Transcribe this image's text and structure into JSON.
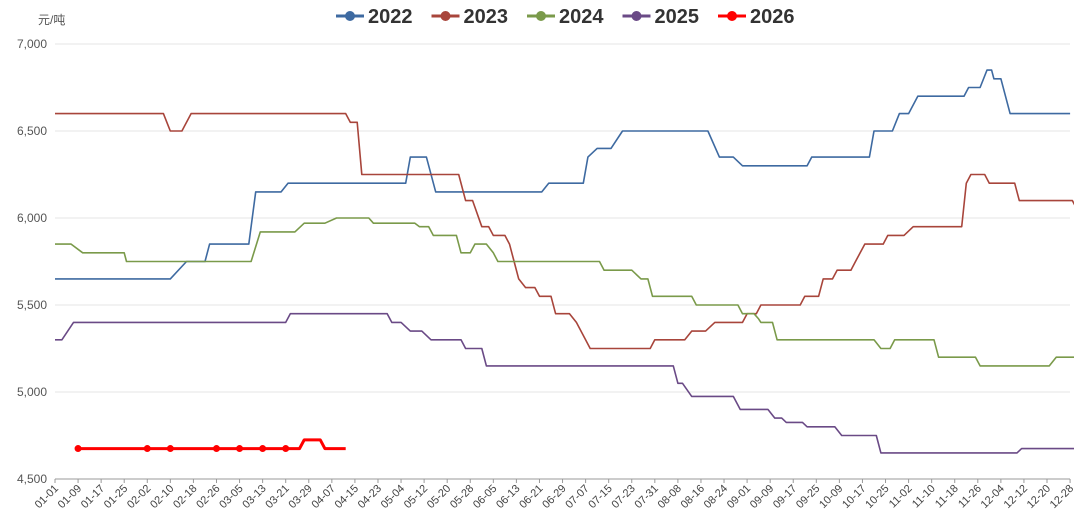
{
  "chart_data": {
    "type": "line",
    "unit_label": "元/吨",
    "ylim": [
      4500,
      7000
    ],
    "yticks": [
      4500,
      5000,
      5500,
      6000,
      6500,
      7000
    ],
    "ytick_labels": [
      "4,500",
      "5,000",
      "5,500",
      "6,000",
      "6,500",
      "7,000"
    ],
    "x_categories": [
      "01-01",
      "01-09",
      "01-17",
      "01-25",
      "02-02",
      "02-10",
      "02-18",
      "02-26",
      "03-05",
      "03-13",
      "03-21",
      "03-29",
      "04-07",
      "04-15",
      "04-23",
      "05-04",
      "05-12",
      "05-20",
      "05-28",
      "06-05",
      "06-13",
      "06-21",
      "06-29",
      "07-07",
      "07-15",
      "07-23",
      "07-31",
      "08-08",
      "08-16",
      "08-24",
      "09-01",
      "09-09",
      "09-17",
      "09-25",
      "10-09",
      "10-17",
      "10-25",
      "11-02",
      "11-10",
      "11-18",
      "11-26",
      "12-04",
      "12-12",
      "12-20",
      "12-28"
    ],
    "grid": "horizontal",
    "legend_position": "top",
    "series": [
      {
        "name": "2022",
        "color": "#3e6aa1",
        "marker": false,
        "points": [
          [
            0,
            5650
          ],
          [
            5,
            5650
          ],
          [
            5.7,
            5750
          ],
          [
            6.5,
            5750
          ],
          [
            6.7,
            5850
          ],
          [
            8.4,
            5850
          ],
          [
            8.7,
            6150
          ],
          [
            9.8,
            6150
          ],
          [
            10.1,
            6200
          ],
          [
            15.2,
            6200
          ],
          [
            15.4,
            6350
          ],
          [
            16.1,
            6350
          ],
          [
            16.5,
            6150
          ],
          [
            21.1,
            6150
          ],
          [
            21.4,
            6200
          ],
          [
            22.9,
            6200
          ],
          [
            23.1,
            6350
          ],
          [
            23.5,
            6400
          ],
          [
            24.1,
            6400
          ],
          [
            24.6,
            6500
          ],
          [
            28.3,
            6500
          ],
          [
            28.8,
            6350
          ],
          [
            29.4,
            6350
          ],
          [
            29.8,
            6300
          ],
          [
            32.6,
            6300
          ],
          [
            32.8,
            6350
          ],
          [
            35.3,
            6350
          ],
          [
            35.5,
            6500
          ],
          [
            36.3,
            6500
          ],
          [
            36.6,
            6600
          ],
          [
            37,
            6600
          ],
          [
            37.4,
            6700
          ],
          [
            39.4,
            6700
          ],
          [
            39.6,
            6750
          ],
          [
            40.1,
            6750
          ],
          [
            40.4,
            6850
          ],
          [
            40.6,
            6850
          ],
          [
            40.7,
            6800
          ],
          [
            41,
            6800
          ],
          [
            41.4,
            6600
          ],
          [
            44,
            6600
          ]
        ]
      },
      {
        "name": "2023",
        "color": "#a8453b",
        "marker": false,
        "points": [
          [
            0,
            6600
          ],
          [
            4.7,
            6600
          ],
          [
            5,
            6500
          ],
          [
            5.5,
            6500
          ],
          [
            5.9,
            6600
          ],
          [
            12.6,
            6600
          ],
          [
            12.8,
            6550
          ],
          [
            13.1,
            6550
          ],
          [
            13.3,
            6250
          ],
          [
            17.5,
            6250
          ],
          [
            17.8,
            6100
          ],
          [
            18.1,
            6100
          ],
          [
            18.5,
            5950
          ],
          [
            18.8,
            5950
          ],
          [
            19,
            5900
          ],
          [
            19.5,
            5900
          ],
          [
            19.7,
            5850
          ],
          [
            19.9,
            5750
          ],
          [
            20.1,
            5650
          ],
          [
            20.4,
            5600
          ],
          [
            20.8,
            5600
          ],
          [
            21,
            5550
          ],
          [
            21.5,
            5550
          ],
          [
            21.7,
            5450
          ],
          [
            22.3,
            5450
          ],
          [
            22.6,
            5400
          ],
          [
            23.2,
            5250
          ],
          [
            25.8,
            5250
          ],
          [
            26,
            5300
          ],
          [
            27.3,
            5300
          ],
          [
            27.6,
            5350
          ],
          [
            28.2,
            5350
          ],
          [
            28.6,
            5400
          ],
          [
            29.8,
            5400
          ],
          [
            30,
            5450
          ],
          [
            30.4,
            5450
          ],
          [
            30.6,
            5500
          ],
          [
            32.3,
            5500
          ],
          [
            32.5,
            5550
          ],
          [
            33.1,
            5550
          ],
          [
            33.3,
            5650
          ],
          [
            33.7,
            5650
          ],
          [
            33.9,
            5700
          ],
          [
            34.5,
            5700
          ],
          [
            34.7,
            5750
          ],
          [
            35.1,
            5850
          ],
          [
            35.9,
            5850
          ],
          [
            36.1,
            5900
          ],
          [
            36.8,
            5900
          ],
          [
            37.2,
            5950
          ],
          [
            39.3,
            5950
          ],
          [
            39.5,
            6200
          ],
          [
            39.7,
            6250
          ],
          [
            40.3,
            6250
          ],
          [
            40.5,
            6200
          ],
          [
            41.6,
            6200
          ],
          [
            41.8,
            6100
          ],
          [
            44.1,
            6100
          ],
          [
            44.3,
            6050
          ],
          [
            44.8,
            6050
          ],
          [
            45.1,
            5950
          ],
          [
            45.8,
            5950
          ],
          [
            46.3,
            5900
          ],
          [
            47.4,
            5900
          ],
          [
            47.6,
            5850
          ]
        ]
      },
      {
        "name": "2024",
        "color": "#7a9a4a",
        "marker": false,
        "points": [
          [
            0,
            5850
          ],
          [
            0.7,
            5850
          ],
          [
            1.2,
            5800
          ],
          [
            3,
            5800
          ],
          [
            3.1,
            5750
          ],
          [
            8.5,
            5750
          ],
          [
            8.9,
            5920
          ],
          [
            10.4,
            5920
          ],
          [
            10.8,
            5970
          ],
          [
            11.7,
            5970
          ],
          [
            12.2,
            6000
          ],
          [
            13.6,
            6000
          ],
          [
            13.8,
            5970
          ],
          [
            15.6,
            5970
          ],
          [
            15.8,
            5950
          ],
          [
            16.2,
            5950
          ],
          [
            16.4,
            5900
          ],
          [
            17.4,
            5900
          ],
          [
            17.6,
            5800
          ],
          [
            18,
            5800
          ],
          [
            18.2,
            5850
          ],
          [
            18.7,
            5850
          ],
          [
            19,
            5800
          ],
          [
            19.2,
            5750
          ],
          [
            23.6,
            5750
          ],
          [
            23.8,
            5700
          ],
          [
            25,
            5700
          ],
          [
            25.4,
            5650
          ],
          [
            25.7,
            5650
          ],
          [
            25.9,
            5550
          ],
          [
            27.6,
            5550
          ],
          [
            27.8,
            5500
          ],
          [
            29.6,
            5500
          ],
          [
            29.8,
            5450
          ],
          [
            30.3,
            5450
          ],
          [
            30.5,
            5420
          ],
          [
            30.6,
            5400
          ],
          [
            31.1,
            5400
          ],
          [
            31.3,
            5300
          ],
          [
            35.5,
            5300
          ],
          [
            35.8,
            5250
          ],
          [
            36.2,
            5250
          ],
          [
            36.4,
            5300
          ],
          [
            38.1,
            5300
          ],
          [
            38.3,
            5200
          ],
          [
            39.9,
            5200
          ],
          [
            40.1,
            5150
          ],
          [
            43.1,
            5150
          ],
          [
            43.4,
            5200
          ],
          [
            44.3,
            5200
          ],
          [
            44.5,
            5250
          ],
          [
            44.7,
            5300
          ],
          [
            47.6,
            5300
          ]
        ]
      },
      {
        "name": "2025",
        "color": "#6a4a86",
        "marker": false,
        "points": [
          [
            0,
            5300
          ],
          [
            0.3,
            5300
          ],
          [
            0.8,
            5400
          ],
          [
            10,
            5400
          ],
          [
            10.2,
            5450
          ],
          [
            14.4,
            5450
          ],
          [
            14.6,
            5400
          ],
          [
            15,
            5400
          ],
          [
            15.4,
            5350
          ],
          [
            15.9,
            5350
          ],
          [
            16.3,
            5300
          ],
          [
            17.6,
            5300
          ],
          [
            17.8,
            5250
          ],
          [
            18.5,
            5250
          ],
          [
            18.7,
            5150
          ],
          [
            26.8,
            5150
          ],
          [
            27,
            5050
          ],
          [
            27.2,
            5050
          ],
          [
            27.6,
            4975
          ],
          [
            29.4,
            4975
          ],
          [
            29.7,
            4900
          ],
          [
            30.9,
            4900
          ],
          [
            31.2,
            4850
          ],
          [
            31.5,
            4850
          ],
          [
            31.7,
            4825
          ],
          [
            32.4,
            4825
          ],
          [
            32.6,
            4800
          ],
          [
            33.8,
            4800
          ],
          [
            34.1,
            4750
          ],
          [
            35.6,
            4750
          ],
          [
            35.8,
            4650
          ],
          [
            41.7,
            4650
          ],
          [
            41.9,
            4675
          ],
          [
            47.6,
            4675
          ]
        ]
      },
      {
        "name": "2026",
        "color": "#ff0000",
        "marker": true,
        "points": [
          [
            1,
            4675
          ],
          [
            2,
            4675
          ],
          [
            3,
            4675
          ],
          [
            4,
            4675
          ],
          [
            5,
            4675
          ],
          [
            6,
            4675
          ],
          [
            7,
            4675
          ],
          [
            8,
            4675
          ],
          [
            9,
            4675
          ],
          [
            10,
            4675
          ],
          [
            10.6,
            4675
          ],
          [
            10.8,
            4725
          ],
          [
            11.5,
            4725
          ],
          [
            11.7,
            4675
          ],
          [
            12.6,
            4675
          ]
        ],
        "marked": [
          [
            1,
            4675
          ],
          [
            4,
            4675
          ],
          [
            5,
            4675
          ],
          [
            7,
            4675
          ],
          [
            8,
            4675
          ],
          [
            9,
            4675
          ],
          [
            10,
            4675
          ]
        ]
      }
    ]
  }
}
